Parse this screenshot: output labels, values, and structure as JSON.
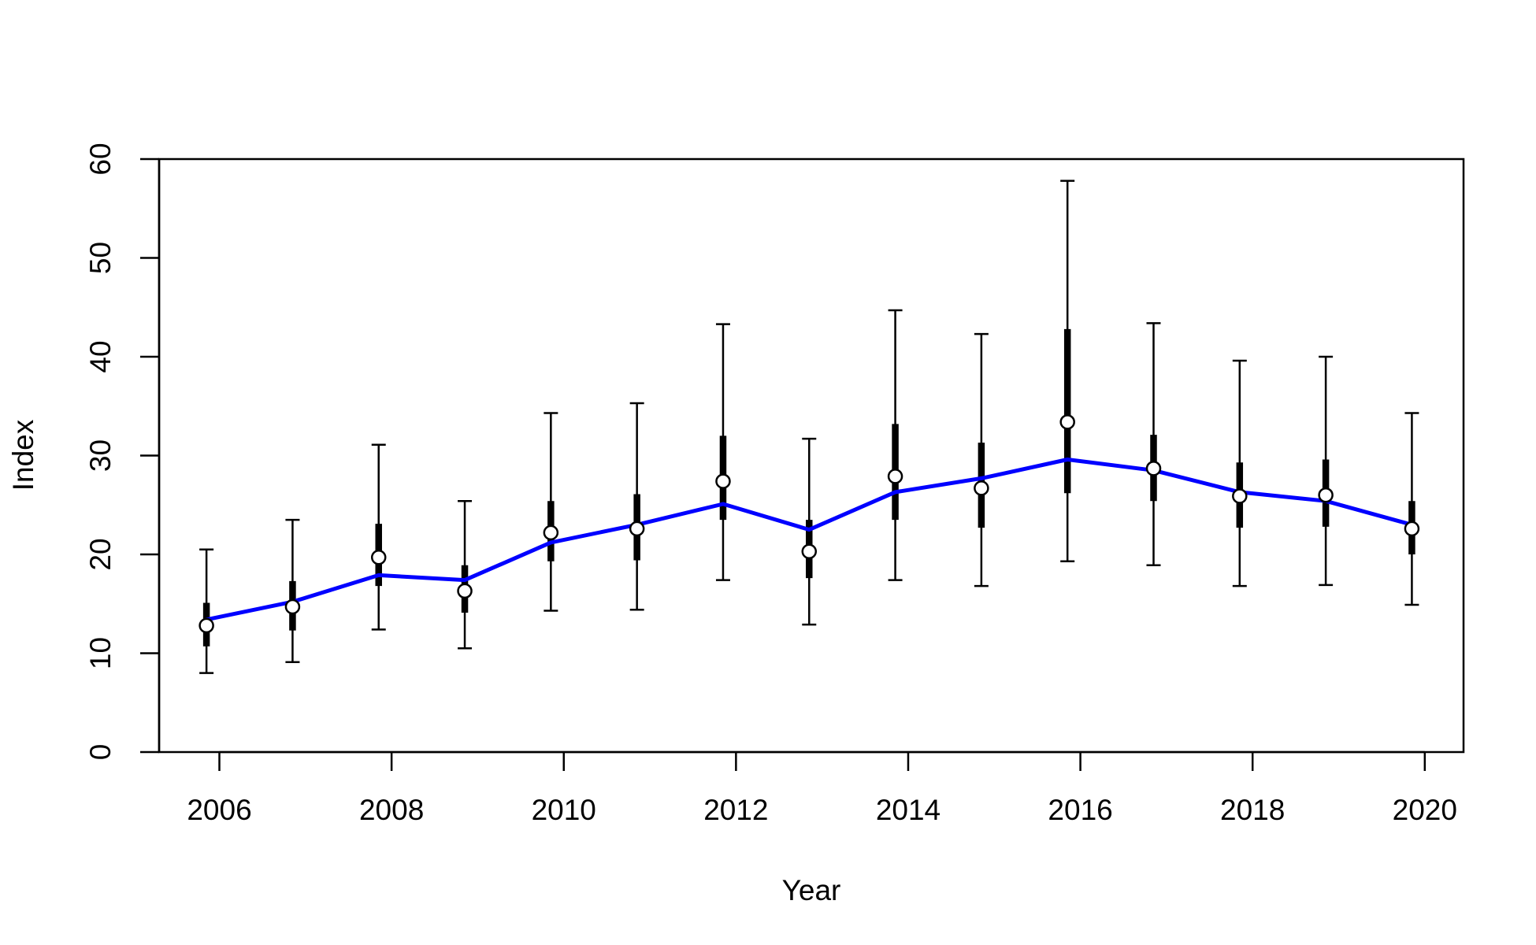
{
  "chart_data": {
    "type": "line",
    "title": "",
    "xlabel": "Year",
    "ylabel": "Index",
    "xlim": [
      2005.3,
      2020.45
    ],
    "ylim": [
      0,
      60
    ],
    "x_ticks": [
      "2006",
      "2008",
      "2010",
      "2012",
      "2014",
      "2016",
      "2018",
      "2020"
    ],
    "y_ticks": [
      "0",
      "10",
      "20",
      "30",
      "40",
      "50",
      "60"
    ],
    "grid": false,
    "legend": "none",
    "colors": {
      "line": "#0000FF",
      "error_bars": "#000000",
      "points_fill": "#FFFFFF",
      "points_edge": "#000000"
    },
    "series": [
      {
        "type": "line",
        "x": [
          2005.85,
          2006.85,
          2007.85,
          2008.85,
          2009.85,
          2010.85,
          2011.85,
          2012.85,
          2013.85,
          2014.85,
          2015.85,
          2016.85,
          2017.85,
          2018.85,
          2019.85
        ],
        "y": [
          13.4,
          15.2,
          17.9,
          17.4,
          21.2,
          23.0,
          25.1,
          22.5,
          26.3,
          27.7,
          29.6,
          28.5,
          26.3,
          25.4,
          23.0
        ]
      },
      {
        "type": "points_with_intervals",
        "x": [
          2005.85,
          2006.85,
          2007.85,
          2008.85,
          2009.85,
          2010.85,
          2011.85,
          2012.85,
          2013.85,
          2014.85,
          2015.85,
          2016.85,
          2017.85,
          2018.85,
          2019.85
        ],
        "y": [
          12.8,
          14.7,
          19.7,
          16.3,
          22.2,
          22.6,
          27.4,
          20.3,
          27.9,
          26.7,
          33.4,
          28.7,
          25.9,
          26.0,
          22.6
        ],
        "inner_lower": [
          10.7,
          12.3,
          16.8,
          14.1,
          19.3,
          19.4,
          23.5,
          17.6,
          23.5,
          22.7,
          26.2,
          25.4,
          22.7,
          22.8,
          20.0
        ],
        "inner_upper": [
          15.1,
          17.3,
          23.1,
          18.9,
          25.4,
          26.1,
          32.0,
          23.5,
          33.2,
          31.3,
          42.8,
          32.1,
          29.3,
          29.6,
          25.4
        ],
        "outer_lower": [
          8.0,
          9.1,
          12.4,
          10.5,
          14.3,
          14.4,
          17.4,
          12.9,
          17.4,
          16.8,
          19.3,
          18.9,
          16.8,
          16.9,
          14.9
        ],
        "outer_upper": [
          20.5,
          23.5,
          31.1,
          25.4,
          34.3,
          35.3,
          43.3,
          31.7,
          44.7,
          42.3,
          57.8,
          43.4,
          39.6,
          40.0,
          34.3
        ]
      }
    ]
  }
}
